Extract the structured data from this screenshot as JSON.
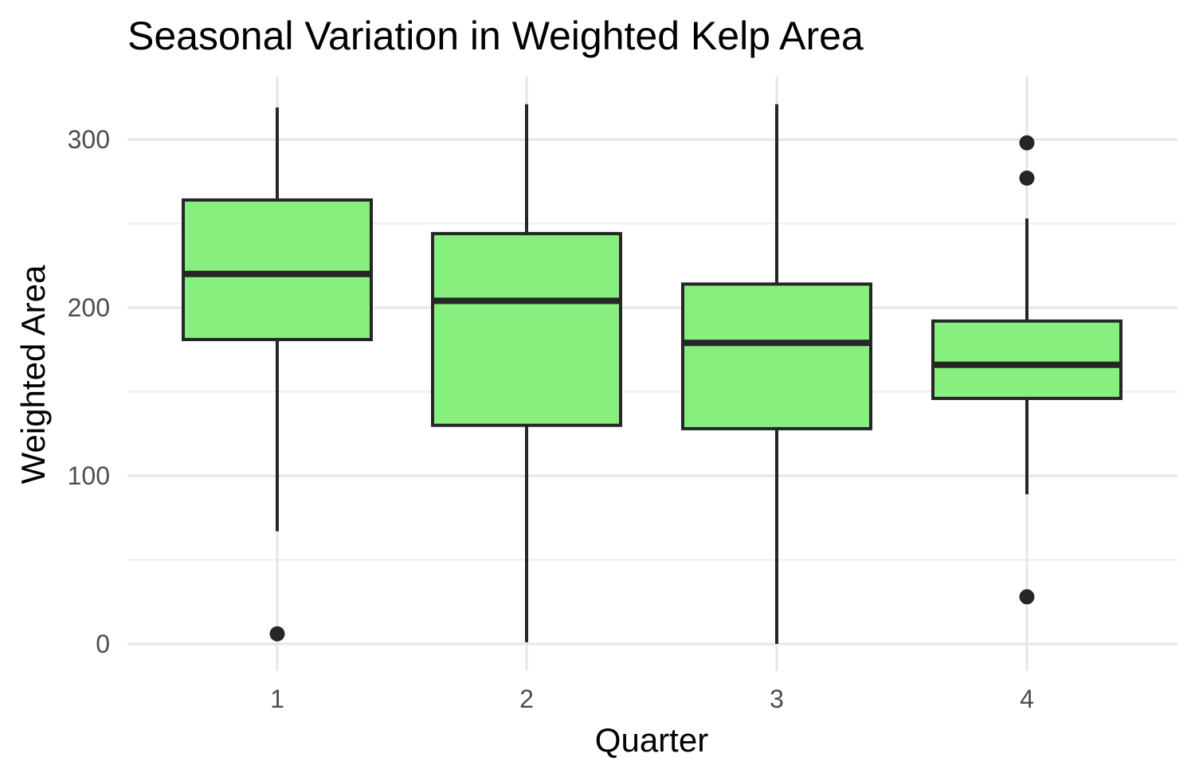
{
  "chart_data": {
    "type": "boxplot",
    "title": "Seasonal Variation in Weighted Kelp Area",
    "xlabel": "Quarter",
    "ylabel": "Weighted Area",
    "categories": [
      "1",
      "2",
      "3",
      "4"
    ],
    "y_ticks": [
      "0",
      "100",
      "200",
      "300"
    ],
    "ylim": [
      -13,
      337
    ],
    "grid": true,
    "fill_color": "#86ef7d",
    "line_color": "#262626",
    "boxes": [
      {
        "category": "1",
        "whisker_low": 67,
        "q1": 181,
        "median": 220,
        "q3": 264,
        "whisker_high": 319,
        "outliers": [
          6
        ]
      },
      {
        "category": "2",
        "whisker_low": 1,
        "q1": 130,
        "median": 204,
        "q3": 244,
        "whisker_high": 321,
        "outliers": []
      },
      {
        "category": "3",
        "whisker_low": 0,
        "q1": 128,
        "median": 179,
        "q3": 214,
        "whisker_high": 321,
        "outliers": []
      },
      {
        "category": "4",
        "whisker_low": 89,
        "q1": 146,
        "median": 166,
        "q3": 192,
        "whisker_high": 253,
        "outliers": [
          28,
          277,
          298
        ]
      }
    ]
  }
}
